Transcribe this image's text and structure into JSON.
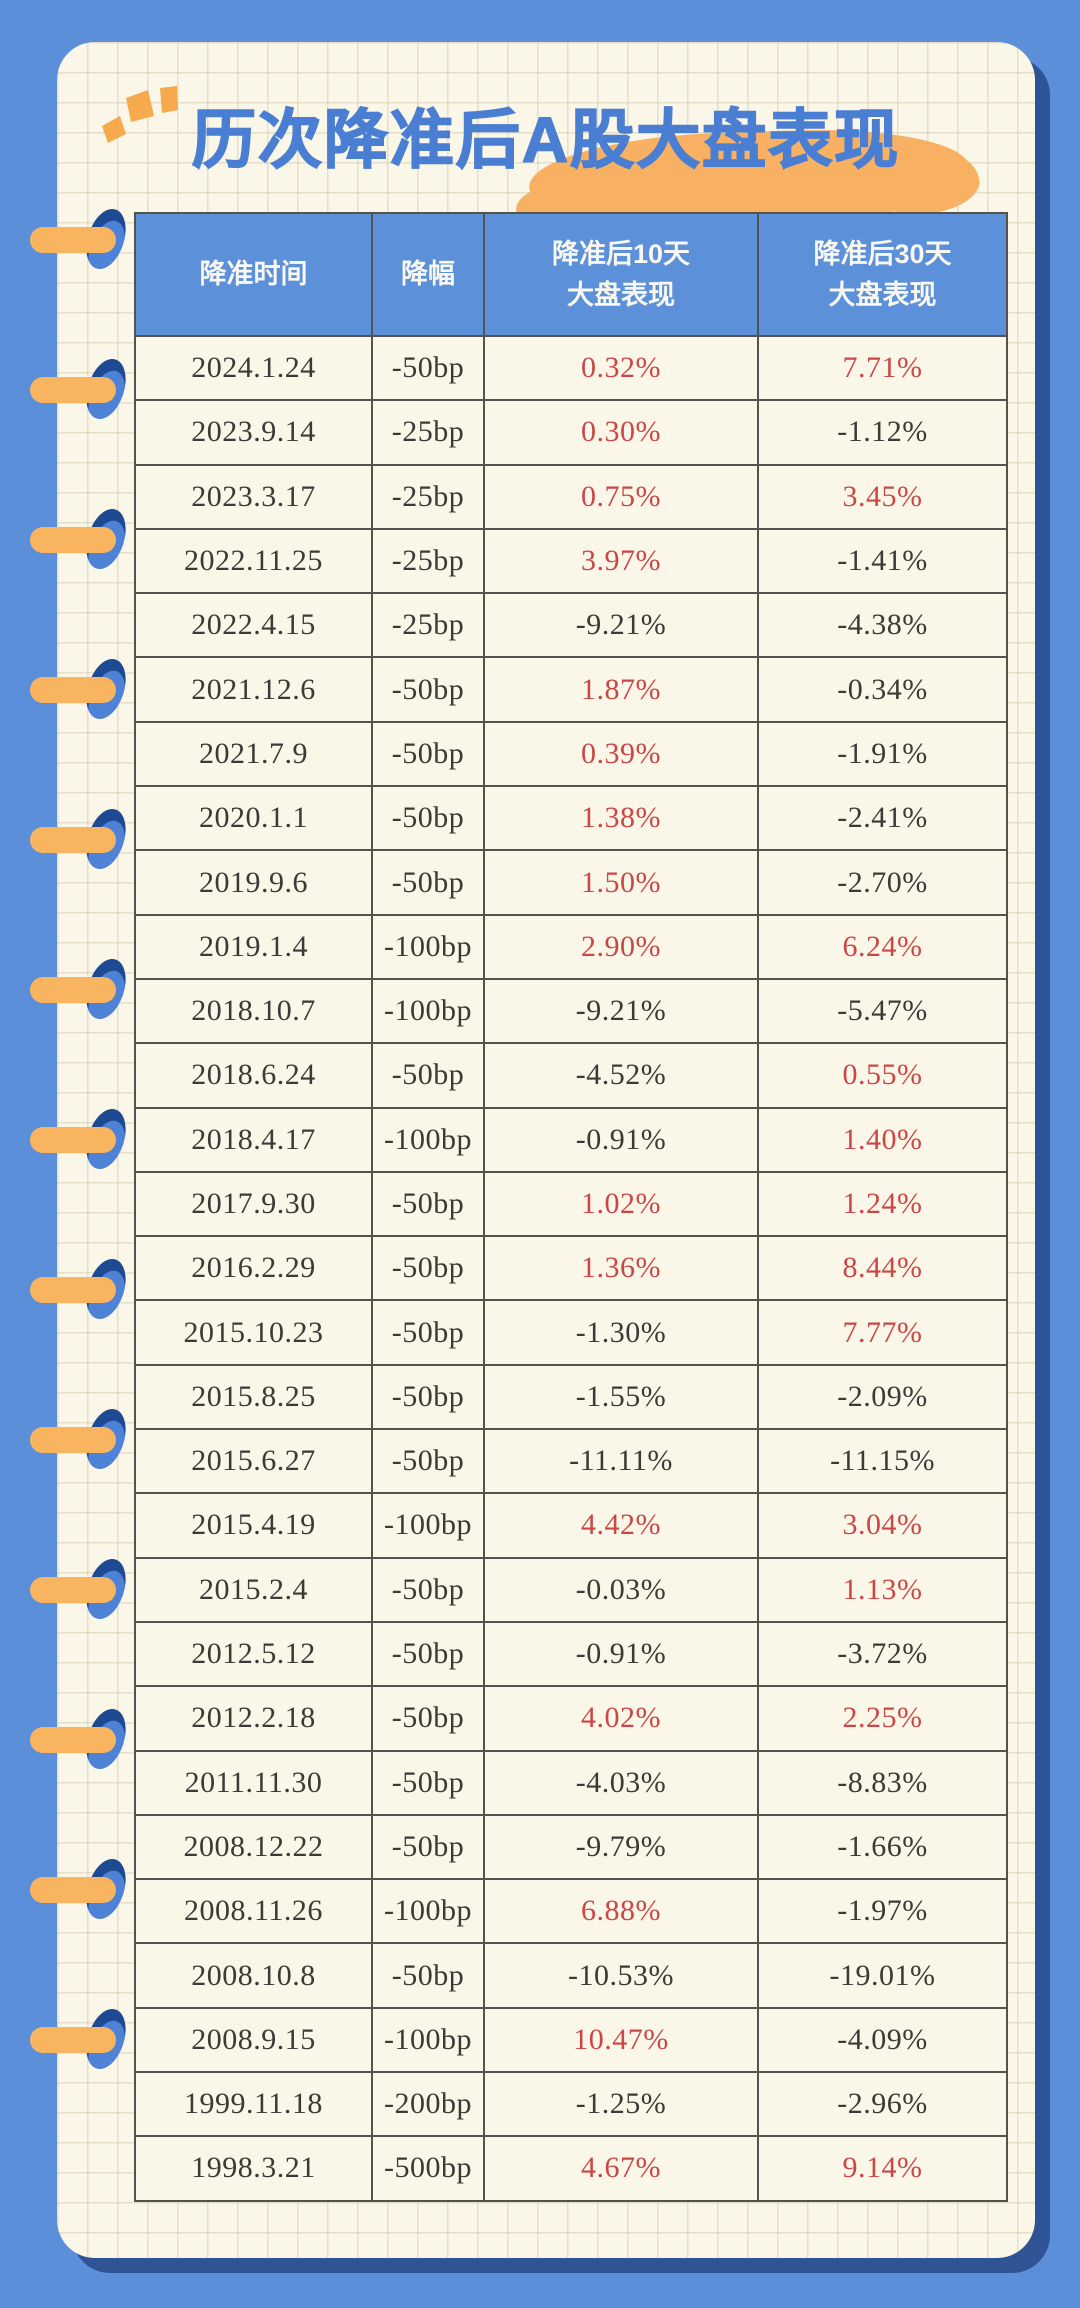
{
  "page": {
    "background_blue": "#5b8fd9",
    "paper_color": "#faf6e8",
    "shadow_navy": "#2f5496",
    "title_blue": "#4a7ed2",
    "highlight_orange": "#f8b163",
    "header_blue": "#5c90d8",
    "positive_red": "#cb4747",
    "text_dark": "#3b3a36"
  },
  "header": {
    "col1": "降准时间",
    "col2": "降幅",
    "col3_line1": "降准后10天",
    "col3_line2": "大盘表现",
    "col4_line1": "降准后30天",
    "col4_line2": "大盘表现"
  },
  "chart_data": {
    "type": "table",
    "title": "历次降准后A股大盘表现",
    "columns": [
      "降准时间",
      "降幅",
      "降准后10天大盘表现",
      "降准后30天大盘表现"
    ],
    "positive_values_shown_in_red": true,
    "rows": [
      {
        "date": "2024.1.24",
        "cut": "-50bp",
        "d10": "0.32%",
        "d10_red": true,
        "d30": "7.71%",
        "d30_red": true
      },
      {
        "date": "2023.9.14",
        "cut": "-25bp",
        "d10": "0.30%",
        "d10_red": true,
        "d30": "-1.12%",
        "d30_red": false
      },
      {
        "date": "2023.3.17",
        "cut": "-25bp",
        "d10": "0.75%",
        "d10_red": true,
        "d30": "3.45%",
        "d30_red": true
      },
      {
        "date": "2022.11.25",
        "cut": "-25bp",
        "d10": "3.97%",
        "d10_red": true,
        "d30": "-1.41%",
        "d30_red": false
      },
      {
        "date": "2022.4.15",
        "cut": "-25bp",
        "d10": "-9.21%",
        "d10_red": false,
        "d30": "-4.38%",
        "d30_red": false
      },
      {
        "date": "2021.12.6",
        "cut": "-50bp",
        "d10": "1.87%",
        "d10_red": true,
        "d30": "-0.34%",
        "d30_red": false
      },
      {
        "date": "2021.7.9",
        "cut": "-50bp",
        "d10": "0.39%",
        "d10_red": true,
        "d30": "-1.91%",
        "d30_red": false
      },
      {
        "date": "2020.1.1",
        "cut": "-50bp",
        "d10": "1.38%",
        "d10_red": true,
        "d30": "-2.41%",
        "d30_red": false
      },
      {
        "date": "2019.9.6",
        "cut": "-50bp",
        "d10": "1.50%",
        "d10_red": true,
        "d30": "-2.70%",
        "d30_red": false
      },
      {
        "date": "2019.1.4",
        "cut": "-100bp",
        "d10": "2.90%",
        "d10_red": true,
        "d30": "6.24%",
        "d30_red": true
      },
      {
        "date": "2018.10.7",
        "cut": "-100bp",
        "d10": "-9.21%",
        "d10_red": false,
        "d30": "-5.47%",
        "d30_red": false
      },
      {
        "date": "2018.6.24",
        "cut": "-50bp",
        "d10": "-4.52%",
        "d10_red": false,
        "d30": "0.55%",
        "d30_red": true
      },
      {
        "date": "2018.4.17",
        "cut": "-100bp",
        "d10": "-0.91%",
        "d10_red": false,
        "d30": "1.40%",
        "d30_red": true
      },
      {
        "date": "2017.9.30",
        "cut": "-50bp",
        "d10": "1.02%",
        "d10_red": true,
        "d30": "1.24%",
        "d30_red": true
      },
      {
        "date": "2016.2.29",
        "cut": "-50bp",
        "d10": "1.36%",
        "d10_red": true,
        "d30": "8.44%",
        "d30_red": true
      },
      {
        "date": "2015.10.23",
        "cut": "-50bp",
        "d10": "-1.30%",
        "d10_red": false,
        "d30": "7.77%",
        "d30_red": true
      },
      {
        "date": "2015.8.25",
        "cut": "-50bp",
        "d10": "-1.55%",
        "d10_red": false,
        "d30": "-2.09%",
        "d30_red": false
      },
      {
        "date": "2015.6.27",
        "cut": "-50bp",
        "d10": "-11.11%",
        "d10_red": false,
        "d30": "-11.15%",
        "d30_red": false
      },
      {
        "date": "2015.4.19",
        "cut": "-100bp",
        "d10": "4.42%",
        "d10_red": true,
        "d30": "3.04%",
        "d30_red": true
      },
      {
        "date": "2015.2.4",
        "cut": "-50bp",
        "d10": "-0.03%",
        "d10_red": false,
        "d30": "1.13%",
        "d30_red": true
      },
      {
        "date": "2012.5.12",
        "cut": "-50bp",
        "d10": "-0.91%",
        "d10_red": false,
        "d30": "-3.72%",
        "d30_red": false
      },
      {
        "date": "2012.2.18",
        "cut": "-50bp",
        "d10": "4.02%",
        "d10_red": true,
        "d30": "2.25%",
        "d30_red": true
      },
      {
        "date": "2011.11.30",
        "cut": "-50bp",
        "d10": "-4.03%",
        "d10_red": false,
        "d30": "-8.83%",
        "d30_red": false
      },
      {
        "date": "2008.12.22",
        "cut": "-50bp",
        "d10": "-9.79%",
        "d10_red": false,
        "d30": "-1.66%",
        "d30_red": false
      },
      {
        "date": "2008.11.26",
        "cut": "-100bp",
        "d10": "6.88%",
        "d10_red": true,
        "d30": "-1.97%",
        "d30_red": false
      },
      {
        "date": "2008.10.8",
        "cut": "-50bp",
        "d10": "-10.53%",
        "d10_red": false,
        "d30": "-19.01%",
        "d30_red": false
      },
      {
        "date": "2008.9.15",
        "cut": "-100bp",
        "d10": "10.47%",
        "d10_red": true,
        "d30": "-4.09%",
        "d30_red": false
      },
      {
        "date": "1999.11.18",
        "cut": "-200bp",
        "d10": "-1.25%",
        "d10_red": false,
        "d30": "-2.96%",
        "d30_red": false
      },
      {
        "date": "1998.3.21",
        "cut": "-500bp",
        "d10": "4.67%",
        "d10_red": true,
        "d30": "9.14%",
        "d30_red": true
      }
    ]
  }
}
